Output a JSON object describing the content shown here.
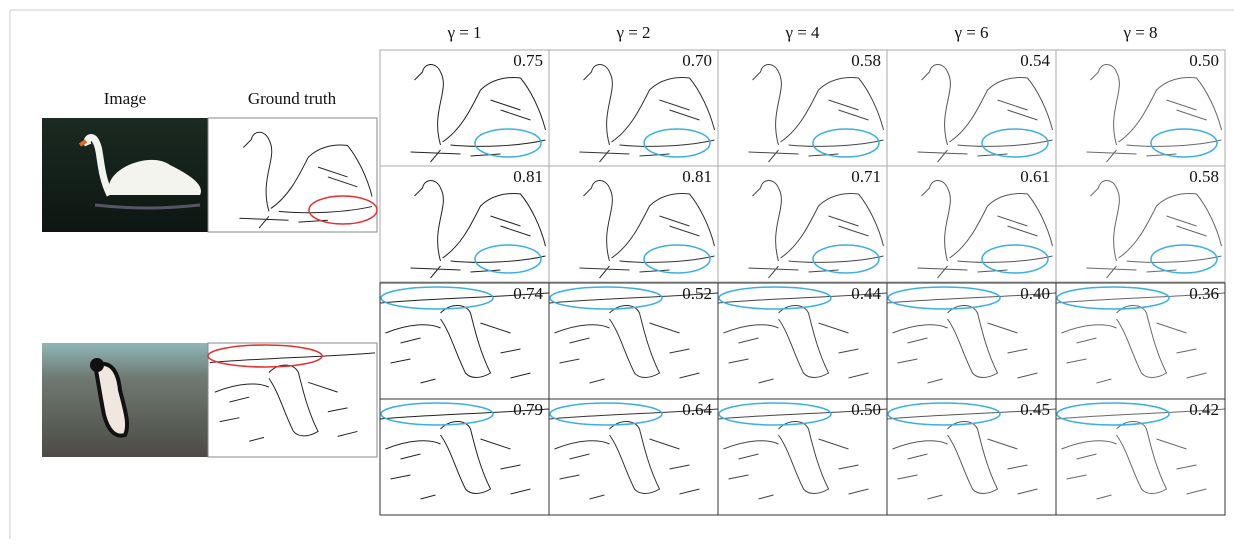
{
  "figure": {
    "left_headers": {
      "image": "Image",
      "ground_truth": "Ground truth"
    },
    "columns": [
      "γ = 1",
      "γ = 2",
      "γ = 4",
      "γ = 6",
      "γ = 8"
    ],
    "rows": [
      {
        "scores": [
          "0.75",
          "0.70",
          "0.58",
          "0.54",
          "0.50"
        ]
      },
      {
        "scores": [
          "0.81",
          "0.81",
          "0.71",
          "0.61",
          "0.58"
        ]
      },
      {
        "scores": [
          "0.74",
          "0.52",
          "0.44",
          "0.40",
          "0.36"
        ]
      },
      {
        "scores": [
          "0.79",
          "0.64",
          "0.50",
          "0.45",
          "0.42"
        ]
      }
    ]
  }
}
